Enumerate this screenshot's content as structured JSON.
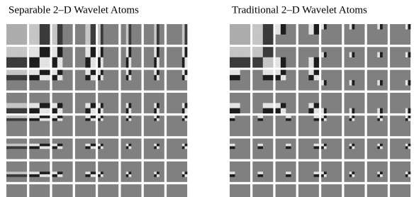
{
  "panels": [
    {
      "title": "Separable 2–D Wavelet Atoms"
    },
    {
      "title": "Traditional 2–D Wavelet Atoms"
    }
  ]
}
